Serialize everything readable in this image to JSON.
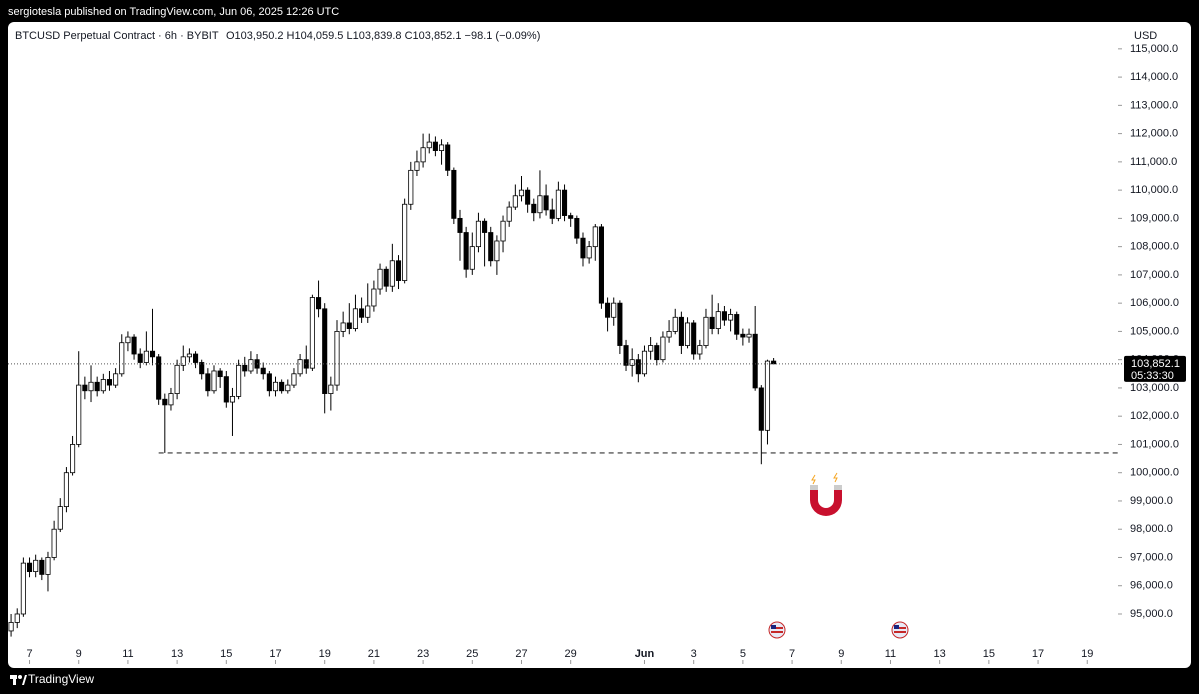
{
  "header": {
    "published": "sergiotesla published on TradingView.com, Jun 06, 2025 12:26 UTC",
    "footer_brand": "TradingView"
  },
  "chart_data": {
    "type": "candlestick",
    "title": "BTCUSD Perpetual Contract · 6h · BYBIT",
    "ohlc_legend": "O103,950.2 H104,059.5 L103,839.8 C103,852.1 −98.1 (−0.09%)",
    "currency": "USD",
    "last_price_label": "103,852.1",
    "countdown": "05:33:30",
    "horizontal_line": 100700,
    "up_color": "#ffffff",
    "down_color": "#000000",
    "border_color": "#000000",
    "open": [
      94400,
      94700,
      95000,
      96800,
      96500,
      96900,
      96400,
      97000,
      98000,
      98800,
      100000,
      101000,
      103100,
      102900,
      103200,
      102900,
      103300,
      103100,
      103500,
      104600,
      104800,
      104200,
      103900,
      104300,
      104100,
      102600,
      102400,
      102800,
      103800,
      104100,
      104200,
      103900,
      103500,
      102900,
      103600,
      103400,
      102500,
      102700,
      103800,
      103600,
      104000,
      103700,
      103500,
      102900,
      103200,
      102900,
      103100,
      103500,
      104000,
      103700,
      106200,
      105800,
      102800,
      103100,
      105000,
      105300,
      105100,
      105800,
      105500,
      105900,
      106500,
      107200,
      106600,
      107500,
      106800,
      109500,
      110700,
      111000,
      111500,
      111700,
      111400,
      111600,
      110700,
      109000,
      108500,
      107200,
      108000,
      108900,
      108500,
      107500,
      108200,
      108900,
      109400,
      109800,
      110000,
      109500,
      109200,
      109800,
      109300,
      109000,
      110000,
      109100,
      109000,
      108300,
      107600,
      108000,
      108700,
      106000,
      105500,
      106000,
      104500,
      103800,
      104000,
      103500,
      104300,
      104500,
      104000,
      104800,
      105000,
      105500,
      104500,
      105300,
      104200,
      104500,
      105500,
      105100,
      105700,
      105400,
      105600,
      104900,
      104800,
      104900,
      103000,
      101500,
      103950.2
    ],
    "high": [
      95000,
      95200,
      97000,
      97000,
      97100,
      97000,
      97200,
      98300,
      99100,
      100200,
      101300,
      104300,
      103400,
      103800,
      103400,
      103500,
      103600,
      103700,
      104900,
      105000,
      104900,
      104400,
      105000,
      105800,
      104200,
      102800,
      103000,
      104000,
      104500,
      104400,
      104300,
      104000,
      103700,
      103800,
      103700,
      103600,
      103000,
      104000,
      104100,
      104300,
      104200,
      103900,
      103600,
      103400,
      103300,
      103300,
      103700,
      104200,
      104500,
      106300,
      106800,
      106000,
      103400,
      105400,
      105700,
      106000,
      106300,
      106200,
      106700,
      106800,
      107400,
      107300,
      108100,
      107700,
      109700,
      111000,
      111400,
      112000,
      112000,
      111900,
      111800,
      111700,
      110800,
      109300,
      108700,
      108500,
      109200,
      109000,
      108700,
      108400,
      109100,
      109600,
      110200,
      110500,
      110100,
      109700,
      110700,
      110200,
      109700,
      110300,
      110200,
      109200,
      109100,
      108500,
      108200,
      108800,
      108800,
      106200,
      106200,
      106100,
      104700,
      104400,
      104200,
      104500,
      104800,
      104600,
      105000,
      105400,
      105800,
      105700,
      105500,
      105400,
      104700,
      105800,
      106300,
      106000,
      105900,
      105800,
      105700,
      105100,
      105100,
      105900,
      103100,
      104000,
      104059.5
    ],
    "low": [
      94200,
      94500,
      94900,
      96300,
      96300,
      96200,
      95800,
      96900,
      97900,
      98600,
      99900,
      100900,
      102600,
      102500,
      102700,
      102800,
      102900,
      103000,
      103400,
      104300,
      104000,
      103700,
      103800,
      103800,
      102400,
      100700,
      102200,
      102600,
      103600,
      103900,
      103700,
      103300,
      102700,
      102800,
      103000,
      102300,
      101300,
      102600,
      103400,
      103500,
      103500,
      103300,
      102700,
      102700,
      102800,
      102800,
      103000,
      103400,
      103500,
      103600,
      105500,
      102100,
      102200,
      102900,
      104800,
      104900,
      105000,
      105300,
      105300,
      105700,
      106300,
      106400,
      106400,
      106500,
      106700,
      109300,
      110500,
      110800,
      111300,
      111200,
      110900,
      110500,
      108800,
      107500,
      106900,
      107000,
      107800,
      107300,
      107300,
      107000,
      107800,
      108700,
      109300,
      109600,
      109200,
      108900,
      109000,
      109100,
      108800,
      108900,
      108900,
      108700,
      108100,
      107300,
      107400,
      107500,
      105800,
      105000,
      105200,
      104200,
      103600,
      103400,
      103200,
      103400,
      104000,
      103800,
      103900,
      104600,
      104900,
      104200,
      104400,
      104000,
      104000,
      104400,
      104900,
      104900,
      105200,
      105000,
      104700,
      104500,
      104600,
      102900,
      100300,
      101000,
      103839.8
    ],
    "close": [
      94700,
      95000,
      96800,
      96500,
      96900,
      96400,
      97000,
      98000,
      98800,
      100000,
      101000,
      103100,
      102900,
      103200,
      102900,
      103300,
      103100,
      103500,
      104600,
      104800,
      104200,
      103900,
      104300,
      104100,
      102600,
      102400,
      102800,
      103800,
      104100,
      104200,
      103900,
      103500,
      102900,
      103600,
      103400,
      102500,
      102700,
      103800,
      103600,
      104000,
      103700,
      103500,
      102900,
      103200,
      102900,
      103100,
      103500,
      104000,
      103700,
      106200,
      105800,
      102800,
      103100,
      105000,
      105300,
      105100,
      105800,
      105500,
      105900,
      106500,
      107200,
      106600,
      107500,
      106800,
      109500,
      110700,
      111000,
      111500,
      111700,
      111400,
      111600,
      110700,
      109000,
      108500,
      107200,
      108000,
      108900,
      108500,
      107500,
      108200,
      108900,
      109400,
      109800,
      110000,
      109500,
      109200,
      109800,
      109300,
      109000,
      110000,
      109100,
      109000,
      108300,
      107600,
      108000,
      108700,
      106000,
      105500,
      106000,
      104500,
      103800,
      104000,
      103500,
      104300,
      104500,
      104000,
      104800,
      105000,
      105500,
      104500,
      105300,
      104200,
      104500,
      105500,
      105100,
      105700,
      105400,
      105600,
      104900,
      104800,
      104900,
      103000,
      101500,
      103950.2,
      103852.1
    ],
    "xlim": [
      -0.5,
      180
    ],
    "xticks": [
      {
        "value": 3,
        "label": "7"
      },
      {
        "value": 11,
        "label": "9"
      },
      {
        "value": 19,
        "label": "11"
      },
      {
        "value": 27,
        "label": "13"
      },
      {
        "value": 35,
        "label": "15"
      },
      {
        "value": 43,
        "label": "17"
      },
      {
        "value": 51,
        "label": "19"
      },
      {
        "value": 59,
        "label": "21"
      },
      {
        "value": 67,
        "label": "23"
      },
      {
        "value": 75,
        "label": "25"
      },
      {
        "value": 83,
        "label": "27"
      },
      {
        "value": 91,
        "label": "29"
      },
      {
        "value": 103,
        "label": "Jun"
      },
      {
        "value": 111,
        "label": "3"
      },
      {
        "value": 119,
        "label": "5"
      },
      {
        "value": 127,
        "label": "7"
      },
      {
        "value": 135,
        "label": "9"
      },
      {
        "value": 143,
        "label": "11"
      },
      {
        "value": 151,
        "label": "13"
      },
      {
        "value": 159,
        "label": "15"
      },
      {
        "value": 167,
        "label": "17"
      },
      {
        "value": 175,
        "label": "19"
      }
    ],
    "ylim": [
      93230,
      115950
    ],
    "yticks": [
      {
        "value": 95000,
        "label": "95,000.0"
      },
      {
        "value": 96000,
        "label": "96,000.0"
      },
      {
        "value": 97000,
        "label": "97,000.0"
      },
      {
        "value": 98000,
        "label": "98,000.0"
      },
      {
        "value": 99000,
        "label": "99,000.0"
      },
      {
        "value": 100000,
        "label": "100,000.0"
      },
      {
        "value": 101000,
        "label": "101,000.0"
      },
      {
        "value": 102000,
        "label": "102,000.0"
      },
      {
        "value": 103000,
        "label": "103,000.0"
      },
      {
        "value": 104000,
        "label": "104,000.0"
      },
      {
        "value": 105000,
        "label": "105,000.0"
      },
      {
        "value": 106000,
        "label": "106,000.0"
      },
      {
        "value": 107000,
        "label": "107,000.0"
      },
      {
        "value": 108000,
        "label": "108,000.0"
      },
      {
        "value": 109000,
        "label": "109,000.0"
      },
      {
        "value": 110000,
        "label": "110,000.0"
      },
      {
        "value": 111000,
        "label": "111,000.0"
      },
      {
        "value": 112000,
        "label": "112,000.0"
      },
      {
        "value": 113000,
        "label": "113,000.0"
      },
      {
        "value": 114000,
        "label": "114,000.0"
      },
      {
        "value": 115000,
        "label": "115,000.0"
      }
    ]
  }
}
